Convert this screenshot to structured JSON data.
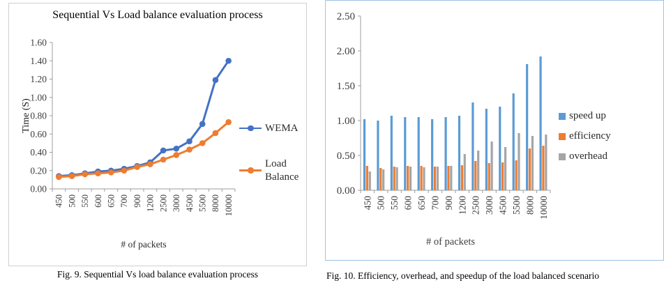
{
  "figures": {
    "fig9": {
      "caption": "Fig. 9. Sequential Vs load balance evaluation process"
    },
    "fig10": {
      "caption": "Fig. 10. Efficiency, overhead, and speedup of the load balanced scenario"
    }
  },
  "chart_data": [
    {
      "type": "line",
      "title": "Sequential Vs Load balance evaluation process",
      "xlabel": "# of packets",
      "ylabel": "Time (S)",
      "ylim": [
        0,
        1.6
      ],
      "ytick_step": 0.2,
      "grid": false,
      "legend_position": "right",
      "categories": [
        "450",
        "500",
        "550",
        "600",
        "650",
        "700",
        "900",
        "1200",
        "2500",
        "3000",
        "4500",
        "5500",
        "8000",
        "10000"
      ],
      "series": [
        {
          "name": "WEMA",
          "color": "#4472C4",
          "values": [
            0.14,
            0.15,
            0.17,
            0.19,
            0.2,
            0.22,
            0.25,
            0.29,
            0.42,
            0.44,
            0.52,
            0.71,
            1.19,
            1.4
          ]
        },
        {
          "name": "Load Balance",
          "color": "#ED7D31",
          "values": [
            0.13,
            0.14,
            0.16,
            0.17,
            0.18,
            0.2,
            0.24,
            0.27,
            0.32,
            0.37,
            0.43,
            0.5,
            0.61,
            0.73
          ]
        }
      ]
    },
    {
      "type": "bar",
      "title": "",
      "xlabel": "# of packets",
      "ylabel": "",
      "ylim": [
        0,
        2.5
      ],
      "ytick_step": 0.5,
      "grid": false,
      "legend_position": "right",
      "categories": [
        "450",
        "500",
        "550",
        "600",
        "650",
        "700",
        "900",
        "1200",
        "2500",
        "3000",
        "4500",
        "5500",
        "8000",
        "10000"
      ],
      "series": [
        {
          "name": "speed up",
          "color": "#5B9BD5",
          "values": [
            1.02,
            1.0,
            1.07,
            1.05,
            1.05,
            1.02,
            1.05,
            1.07,
            1.26,
            1.17,
            1.2,
            1.39,
            1.81,
            1.92
          ]
        },
        {
          "name": "efficiency",
          "color": "#ED7D31",
          "values": [
            0.35,
            0.32,
            0.34,
            0.35,
            0.35,
            0.34,
            0.35,
            0.36,
            0.42,
            0.39,
            0.4,
            0.43,
            0.6,
            0.64
          ]
        },
        {
          "name": "overhead",
          "color": "#A5A5A5",
          "values": [
            0.27,
            0.3,
            0.33,
            0.34,
            0.33,
            0.34,
            0.35,
            0.52,
            0.57,
            0.7,
            0.62,
            0.82,
            0.78,
            0.8
          ]
        }
      ]
    }
  ]
}
